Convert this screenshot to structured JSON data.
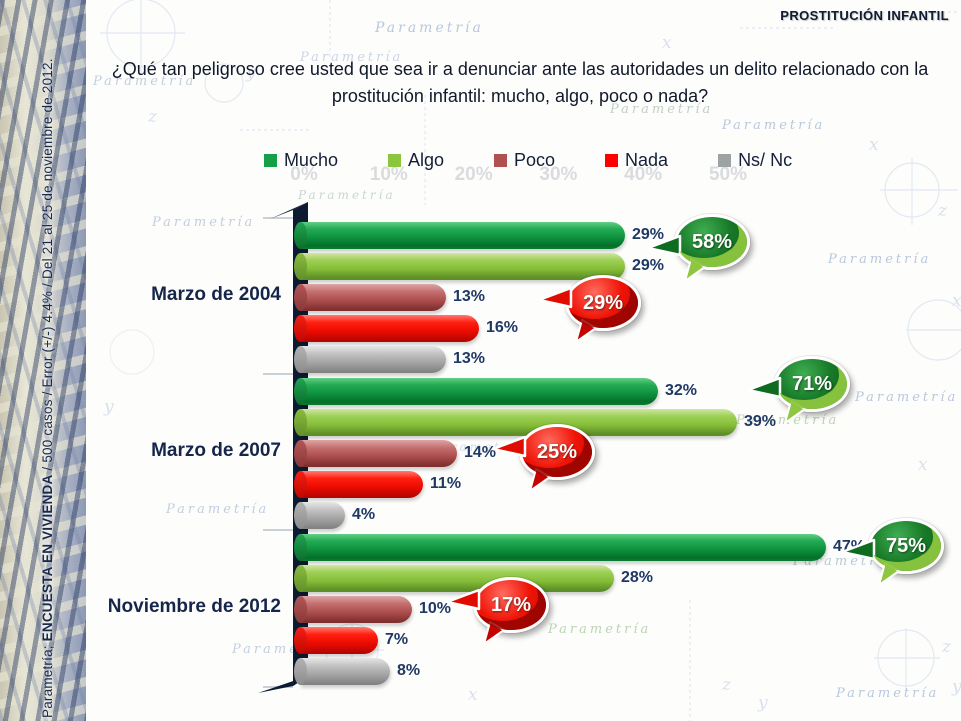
{
  "header": {
    "title": "PROSTITUCIÓN INFANTIL"
  },
  "question": {
    "text": "¿Qué tan peligroso cree usted que sea ir a denunciar ante las autoridades un delito relacionado con la prostitución infantil: mucho, algo, poco o nada?"
  },
  "sidebar": {
    "prefix": "Parametría; ",
    "bold": "ENCUESTA EN VIVIENDA",
    "suffix": " / 500 casos / Error (+/-) 4.4% / Del 21 al 25 de noviembre de 2012."
  },
  "watermark_text": "Parametría",
  "chart_data": {
    "type": "bar",
    "orientation": "horizontal",
    "title": "¿Qué tan peligroso cree usted que sea ir a denunciar ante las autoridades un delito relacionado con la prostitución infantil: mucho, algo, poco o nada?",
    "categories": [
      "Marzo de 2004",
      "Marzo de 2007",
      "Noviembre de 2012"
    ],
    "series": [
      {
        "name": "Mucho",
        "color": "#15a048",
        "values": [
          29,
          32,
          47
        ]
      },
      {
        "name": "Algo",
        "color": "#8cc63f",
        "values": [
          29,
          39,
          28
        ]
      },
      {
        "name": "Poco",
        "color": "#b05050",
        "values": [
          13,
          14,
          10
        ]
      },
      {
        "name": "Nada",
        "color": "#ff0000",
        "values": [
          16,
          11,
          7
        ]
      },
      {
        "name": "Ns/ Nc",
        "color": "#9da3a3",
        "values": [
          13,
          4,
          8
        ]
      }
    ],
    "value_suffix": "%",
    "xlim": [
      0,
      50
    ],
    "axis_ticks": [
      "0%",
      "10%",
      "20%",
      "30%",
      "40%",
      "50%"
    ],
    "grid": false,
    "legend_position": "top",
    "annotations": {
      "green_bubbles": {
        "meaning": "Mucho + Algo",
        "color": "#187a28",
        "values": [
          58,
          71,
          75
        ]
      },
      "red_bubbles": {
        "meaning": "Poco + Nada",
        "color": "#ef1407",
        "values": [
          29,
          25,
          17
        ]
      }
    }
  }
}
